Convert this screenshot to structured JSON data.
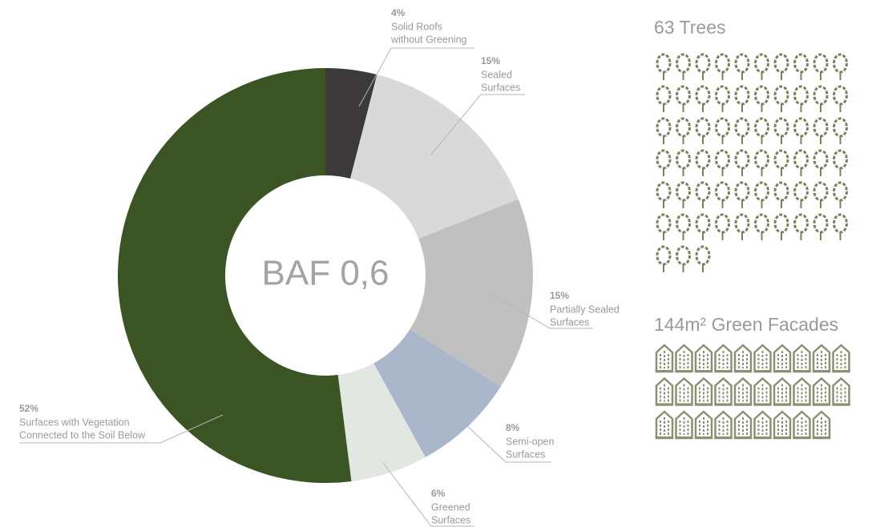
{
  "chart_data": [
    {
      "type": "donut",
      "annotation": "BAF 0,6",
      "categories": [
        [
          "Solid Roofs",
          "without Greening"
        ],
        [
          "Sealed",
          "Surfaces"
        ],
        [
          "Partially Sealed",
          "Surfaces"
        ],
        [
          "Semi-open",
          "Surfaces"
        ],
        [
          "Greened",
          "Surfaces"
        ],
        [
          "Surfaces with Vegetation",
          "Connected to the Soil Below"
        ]
      ],
      "values": [
        4,
        15,
        15,
        8,
        6,
        52
      ],
      "value_labels": [
        "4%",
        "15%",
        "15%",
        "8%",
        "6%",
        "52%"
      ],
      "colors": [
        "#3b393a",
        "#d9d9d9",
        "#c0c0c0",
        "#aab6ca",
        "#e3e7e1",
        "#3a5423"
      ]
    },
    {
      "type": "pictogram",
      "title": "63 Trees",
      "values": 63,
      "icon": "tree",
      "color": "#75835d"
    },
    {
      "type": "pictogram",
      "title": "144m² Green Facades",
      "values": 29,
      "icon": "facade",
      "color": "#8e8f72"
    }
  ]
}
